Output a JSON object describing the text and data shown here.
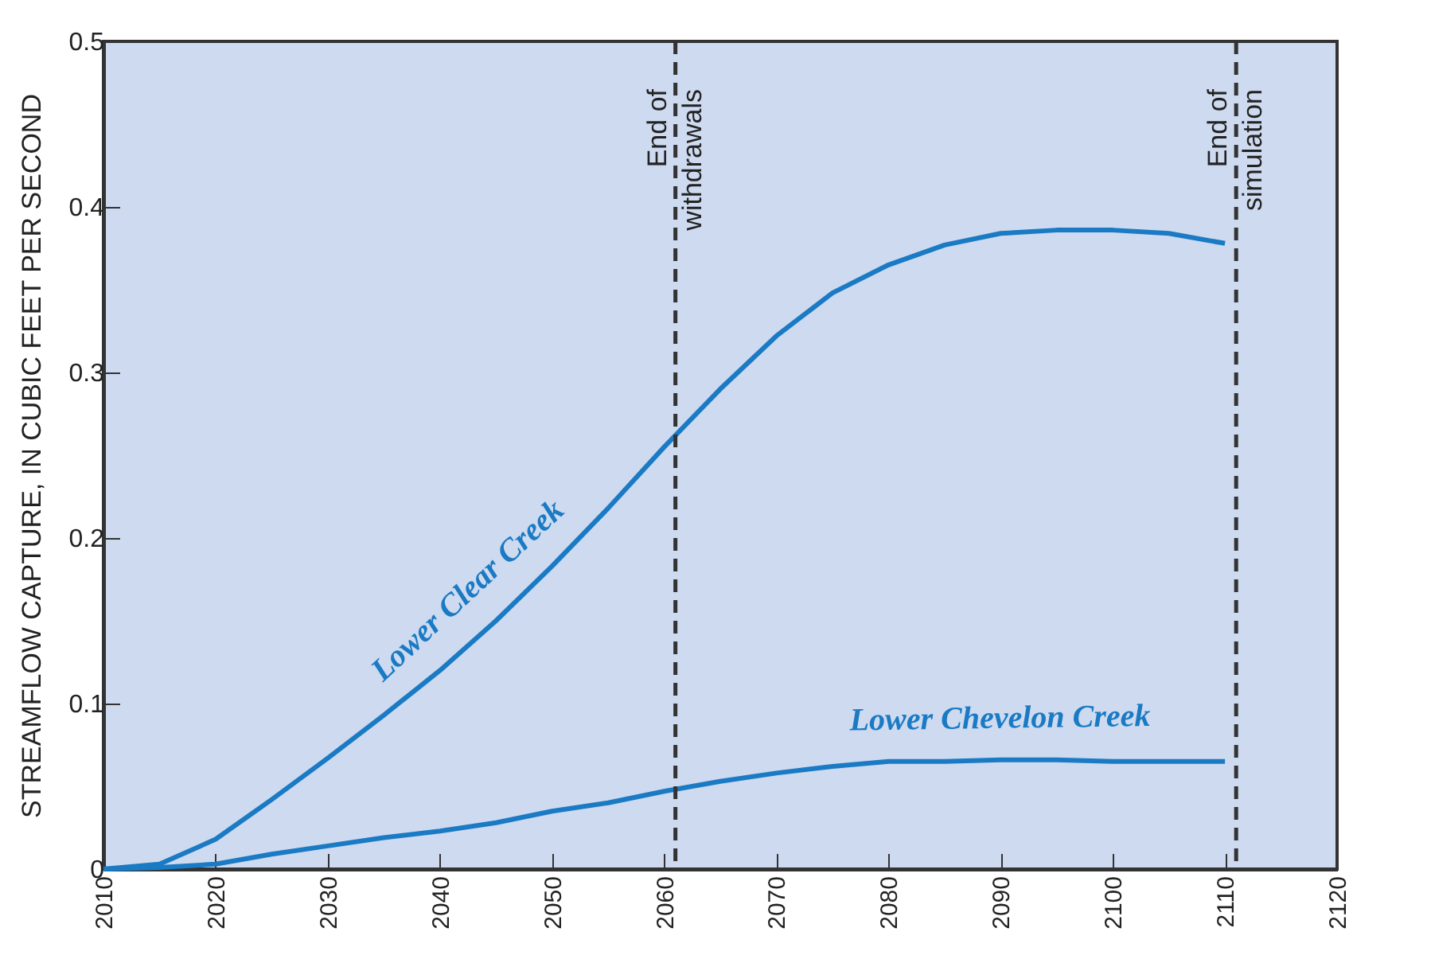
{
  "chart_data": {
    "type": "line",
    "ylabel": "STREAMFLOW CAPTURE, IN CUBIC FEET PER SECOND",
    "x": [
      2010,
      2015,
      2020,
      2025,
      2030,
      2035,
      2040,
      2045,
      2050,
      2055,
      2060,
      2065,
      2070,
      2075,
      2080,
      2085,
      2090,
      2095,
      2100,
      2105,
      2110
    ],
    "series": [
      {
        "name": "Lower Clear Creek",
        "color": "#1a7ac4",
        "values": [
          0,
          0.003,
          0.018,
          0.042,
          0.067,
          0.093,
          0.12,
          0.15,
          0.183,
          0.218,
          0.255,
          0.29,
          0.322,
          0.348,
          0.365,
          0.377,
          0.384,
          0.386,
          0.386,
          0.384,
          0.378
        ]
      },
      {
        "name": "Lower Chevelon Creek",
        "color": "#1a7ac4",
        "values": [
          0,
          0.001,
          0.003,
          0.009,
          0.014,
          0.019,
          0.023,
          0.028,
          0.035,
          0.04,
          0.047,
          0.053,
          0.058,
          0.062,
          0.065,
          0.065,
          0.066,
          0.066,
          0.065,
          0.065,
          0.065
        ]
      }
    ],
    "xlim": [
      2010,
      2120
    ],
    "xticks": [
      2010,
      2020,
      2030,
      2040,
      2050,
      2060,
      2070,
      2080,
      2090,
      2100,
      2110,
      2120
    ],
    "ylim": [
      0,
      0.5
    ],
    "yticks": [
      0,
      0.1,
      0.2,
      0.3,
      0.4,
      0.5
    ],
    "ref_lines": [
      {
        "axis": "x",
        "value": 2061,
        "label": "End of\nwithdrawals",
        "color": "#333333",
        "line_style": "dashed"
      },
      {
        "axis": "x",
        "value": 2111,
        "label": "End of\nsimulation",
        "color": "#333333",
        "line_style": "dashed"
      }
    ],
    "grid": false,
    "legend": false,
    "marker": "none",
    "line_style": "solid"
  }
}
